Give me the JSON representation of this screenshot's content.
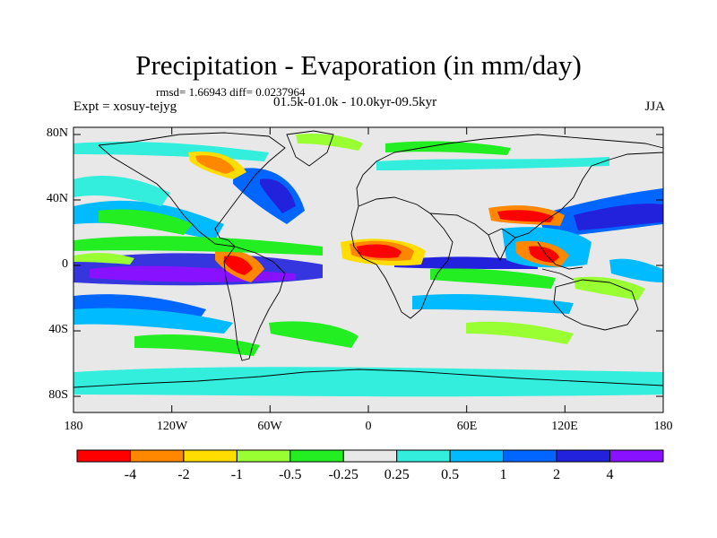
{
  "header": {
    "title": "Precipitation - Evaporation (in mm/day)",
    "stats": "rmsd= 1.66943 diff= 0.0237964",
    "experiment": "Expt = xosuy-tejyg",
    "period": "01.5k-01.0k - 10.0kyr-09.5kyr",
    "season": "JJA"
  },
  "axes": {
    "lat_labels": [
      "80N",
      "40N",
      "0",
      "40S",
      "80S"
    ],
    "lon_labels": [
      "180",
      "120W",
      "60W",
      "0",
      "60E",
      "120E",
      "180"
    ]
  },
  "colorbar": {
    "colors": [
      "#ff0000",
      "#ff8800",
      "#ffdd00",
      "#99ff33",
      "#22ee22",
      "#e8e8e8",
      "#33eedd",
      "#00bbff",
      "#0066ff",
      "#2222dd",
      "#8811ff"
    ],
    "labels": [
      "-4",
      "-2",
      "-1",
      "-0.5",
      "-0.25",
      "0.25",
      "0.5",
      "1",
      "2",
      "4"
    ]
  }
}
